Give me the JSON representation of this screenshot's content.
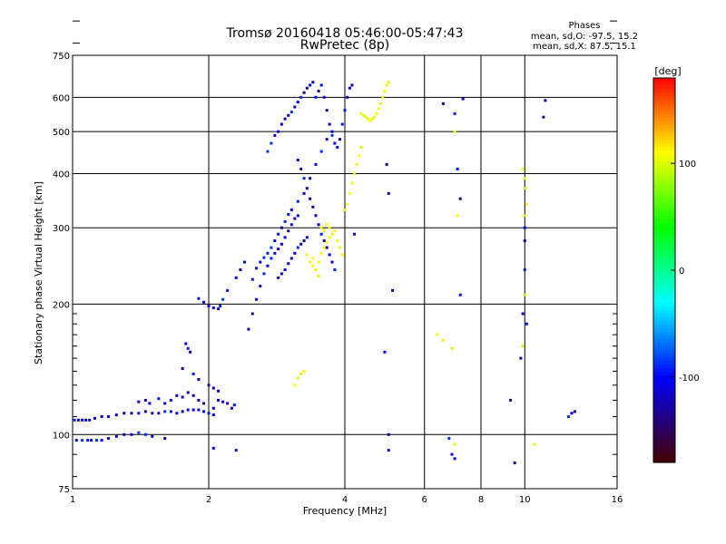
{
  "header": {
    "title_line1": "Tromsø 20160418 05:46:00-05:47:43",
    "title_line2": "RwPretec (8p)"
  },
  "phases_box": {
    "title": "Phases",
    "line_o": "mean, sd,O: -97.5, 15.2",
    "line_x": "mean, sd,X:  87.5, 15.1"
  },
  "colorbar": {
    "label": "[deg]",
    "range": [
      -180,
      180
    ],
    "ticks": [
      100,
      0,
      -100
    ],
    "tick_labels": [
      "100",
      "0",
      "-100"
    ]
  },
  "chart_data": {
    "type": "scatter",
    "title": "Tromsø 20160418 05:46:00-05:47:43",
    "subtitle": "RwPretec (8p)",
    "xlabel": "Frequency [MHz]",
    "ylabel": "Stationary phase Virtual Height [km]",
    "x_scale": "log",
    "y_scale": "log",
    "xlim": [
      1,
      16
    ],
    "ylim": [
      75,
      750
    ],
    "x_ticks": [
      1,
      2,
      4,
      6,
      8,
      10,
      16
    ],
    "x_tick_labels": [
      "1",
      "2",
      "4",
      "6",
      "8",
      "10",
      "16"
    ],
    "x_grid": [
      2,
      4,
      6,
      8,
      10
    ],
    "y_ticks": [
      75,
      100,
      200,
      300,
      400,
      500,
      600,
      750
    ],
    "y_tick_labels": [
      "75",
      "100",
      "200",
      "300",
      "400",
      "500",
      "600",
      "750"
    ],
    "y_grid": [
      100,
      200,
      300,
      400,
      500,
      600
    ],
    "grid": true,
    "series": [
      {
        "points": [
          [
            1.01,
            108
          ],
          [
            1.03,
            108
          ],
          [
            1.05,
            108
          ],
          [
            1.07,
            108
          ],
          [
            1.09,
            108
          ],
          [
            1.12,
            109
          ],
          [
            1.16,
            110
          ],
          [
            1.2,
            110
          ],
          [
            1.25,
            111
          ],
          [
            1.3,
            112
          ],
          [
            1.35,
            112
          ],
          [
            1.4,
            112
          ],
          [
            1.45,
            113
          ],
          [
            1.5,
            112
          ],
          [
            1.55,
            112
          ],
          [
            1.6,
            113
          ],
          [
            1.65,
            113
          ],
          [
            1.7,
            112
          ],
          [
            1.75,
            113
          ],
          [
            1.8,
            114
          ],
          [
            1.85,
            114
          ],
          [
            1.9,
            114
          ],
          [
            1.95,
            113
          ],
          [
            2.0,
            112
          ],
          [
            2.05,
            111
          ],
          [
            1.02,
            97
          ],
          [
            1.05,
            97
          ],
          [
            1.08,
            97
          ],
          [
            1.1,
            97
          ],
          [
            1.13,
            97
          ],
          [
            1.16,
            97
          ],
          [
            1.2,
            98
          ],
          [
            1.25,
            99
          ],
          [
            1.3,
            100
          ],
          [
            1.35,
            100
          ],
          [
            1.4,
            101
          ],
          [
            1.45,
            100
          ],
          [
            1.5,
            99
          ],
          [
            1.6,
            98
          ],
          [
            1.4,
            119
          ],
          [
            1.45,
            120
          ],
          [
            1.48,
            118
          ],
          [
            1.55,
            121
          ],
          [
            1.6,
            118
          ],
          [
            1.65,
            120
          ],
          [
            1.7,
            123
          ],
          [
            1.75,
            122
          ],
          [
            1.8,
            125
          ],
          [
            1.85,
            123
          ],
          [
            1.9,
            120
          ],
          [
            1.95,
            118
          ],
          [
            2.05,
            115
          ],
          [
            2.1,
            120
          ],
          [
            2.15,
            119
          ],
          [
            2.2,
            118
          ],
          [
            2.25,
            115
          ],
          [
            2.28,
            117
          ],
          [
            1.78,
            162
          ],
          [
            1.8,
            158
          ],
          [
            1.82,
            155
          ],
          [
            1.75,
            142
          ],
          [
            1.85,
            138
          ],
          [
            1.9,
            134
          ],
          [
            2.0,
            130
          ],
          [
            2.05,
            128
          ],
          [
            2.1,
            126
          ],
          [
            1.9,
            206
          ],
          [
            1.95,
            202
          ],
          [
            2.0,
            198
          ],
          [
            2.05,
            196
          ],
          [
            2.1,
            195
          ],
          [
            2.12,
            198
          ],
          [
            2.15,
            205
          ],
          [
            2.2,
            215
          ],
          [
            2.3,
            230
          ],
          [
            2.35,
            240
          ],
          [
            2.4,
            250
          ],
          [
            2.45,
            175
          ],
          [
            2.5,
            190
          ],
          [
            2.55,
            205
          ],
          [
            2.6,
            220
          ],
          [
            2.65,
            235
          ],
          [
            2.7,
            245
          ],
          [
            2.75,
            255
          ],
          [
            2.8,
            262
          ],
          [
            2.85,
            268
          ],
          [
            2.9,
            275
          ],
          [
            2.95,
            285
          ],
          [
            3.0,
            295
          ],
          [
            3.05,
            305
          ],
          [
            3.1,
            315
          ],
          [
            3.15,
            320
          ],
          [
            2.5,
            228
          ],
          [
            2.55,
            242
          ],
          [
            2.6,
            250
          ],
          [
            2.65,
            256
          ],
          [
            2.7,
            262
          ],
          [
            2.75,
            270
          ],
          [
            2.8,
            280
          ],
          [
            2.85,
            290
          ],
          [
            2.9,
            300
          ],
          [
            2.95,
            310
          ],
          [
            3.0,
            322
          ],
          [
            3.05,
            330
          ],
          [
            3.15,
            345
          ],
          [
            3.25,
            360
          ],
          [
            3.35,
            390
          ],
          [
            3.45,
            420
          ],
          [
            3.55,
            450
          ],
          [
            3.65,
            480
          ],
          [
            3.75,
            500
          ],
          [
            2.7,
            450
          ],
          [
            2.75,
            470
          ],
          [
            2.8,
            490
          ],
          [
            2.85,
            500
          ],
          [
            2.9,
            520
          ],
          [
            2.95,
            535
          ],
          [
            3.0,
            545
          ],
          [
            3.05,
            555
          ],
          [
            3.1,
            570
          ],
          [
            3.15,
            585
          ],
          [
            3.2,
            600
          ],
          [
            3.25,
            615
          ],
          [
            3.3,
            630
          ],
          [
            3.35,
            640
          ],
          [
            3.4,
            650
          ],
          [
            3.45,
            600
          ],
          [
            3.5,
            620
          ],
          [
            3.55,
            640
          ],
          [
            3.6,
            600
          ],
          [
            3.65,
            560
          ],
          [
            3.7,
            520
          ],
          [
            3.75,
            490
          ],
          [
            3.8,
            470
          ],
          [
            3.85,
            460
          ],
          [
            3.9,
            480
          ],
          [
            3.95,
            520
          ],
          [
            4.0,
            560
          ],
          [
            4.05,
            600
          ],
          [
            4.1,
            630
          ],
          [
            4.15,
            640
          ],
          [
            3.15,
            430
          ],
          [
            3.2,
            410
          ],
          [
            3.25,
            390
          ],
          [
            3.3,
            370
          ],
          [
            3.35,
            350
          ],
          [
            3.4,
            335
          ],
          [
            3.45,
            320
          ],
          [
            3.5,
            305
          ],
          [
            3.55,
            290
          ],
          [
            3.6,
            280
          ],
          [
            3.65,
            270
          ],
          [
            3.7,
            260
          ],
          [
            3.75,
            250
          ],
          [
            3.8,
            240
          ],
          [
            2.85,
            230
          ],
          [
            2.9,
            235
          ],
          [
            2.95,
            240
          ],
          [
            3.0,
            248
          ],
          [
            3.05,
            255
          ],
          [
            3.1,
            262
          ],
          [
            3.15,
            270
          ],
          [
            3.2,
            275
          ],
          [
            3.25,
            280
          ],
          [
            3.3,
            285
          ],
          [
            2.3,
            92
          ],
          [
            2.05,
            93
          ],
          [
            4.2,
            290
          ],
          [
            4.9,
            155
          ],
          [
            4.95,
            420
          ],
          [
            5.0,
            360
          ],
          [
            5.1,
            215
          ],
          [
            5.0,
            100
          ],
          [
            5.0,
            92
          ],
          [
            7.3,
            595
          ],
          [
            7.0,
            550
          ],
          [
            7.1,
            410
          ],
          [
            7.2,
            350
          ],
          [
            6.6,
            580
          ],
          [
            6.8,
            98
          ],
          [
            6.9,
            90
          ],
          [
            7.0,
            88
          ],
          [
            7.2,
            210
          ],
          [
            9.5,
            86
          ],
          [
            9.3,
            120
          ],
          [
            9.8,
            150
          ],
          [
            10.0,
            280
          ],
          [
            10.0,
            300
          ],
          [
            10.0,
            240
          ],
          [
            9.9,
            190
          ],
          [
            10.1,
            180
          ],
          [
            11.1,
            590
          ],
          [
            11.0,
            540
          ],
          [
            12.5,
            110
          ],
          [
            12.7,
            112
          ],
          [
            12.9,
            113
          ]
        ]
      },
      {
        "points": [
          [
            3.3,
            260
          ],
          [
            3.35,
            250
          ],
          [
            3.4,
            245
          ],
          [
            3.45,
            240
          ],
          [
            3.5,
            250
          ],
          [
            3.55,
            262
          ],
          [
            3.6,
            270
          ],
          [
            3.65,
            278
          ],
          [
            3.7,
            285
          ],
          [
            3.75,
            290
          ],
          [
            3.8,
            295
          ],
          [
            3.85,
            280
          ],
          [
            3.9,
            270
          ],
          [
            3.95,
            260
          ],
          [
            3.55,
            300
          ],
          [
            3.6,
            295
          ],
          [
            3.65,
            305
          ],
          [
            3.7,
            300
          ],
          [
            3.4,
            255
          ],
          [
            3.5,
            232
          ],
          [
            4.0,
            330
          ],
          [
            4.05,
            340
          ],
          [
            4.1,
            360
          ],
          [
            4.15,
            380
          ],
          [
            4.2,
            400
          ],
          [
            4.25,
            420
          ],
          [
            4.3,
            440
          ],
          [
            4.35,
            460
          ],
          [
            4.35,
            550
          ],
          [
            4.4,
            545
          ],
          [
            4.45,
            540
          ],
          [
            4.5,
            535
          ],
          [
            4.55,
            530
          ],
          [
            4.6,
            535
          ],
          [
            4.65,
            540
          ],
          [
            4.7,
            550
          ],
          [
            4.75,
            565
          ],
          [
            4.8,
            580
          ],
          [
            4.85,
            600
          ],
          [
            4.9,
            620
          ],
          [
            4.95,
            640
          ],
          [
            5.0,
            650
          ],
          [
            3.1,
            130
          ],
          [
            3.15,
            135
          ],
          [
            3.2,
            138
          ],
          [
            3.25,
            140
          ],
          [
            6.4,
            170
          ],
          [
            6.6,
            165
          ],
          [
            6.9,
            158
          ],
          [
            7.0,
            95
          ],
          [
            7.0,
            500
          ],
          [
            7.1,
            320
          ],
          [
            9.9,
            410
          ],
          [
            10.0,
            390
          ],
          [
            10.05,
            370
          ],
          [
            10.1,
            340
          ],
          [
            9.95,
            320
          ],
          [
            10.0,
            210
          ],
          [
            9.9,
            160
          ],
          [
            10.5,
            95
          ]
        ]
      }
    ],
    "colorbar": {
      "label": "[deg]",
      "range": [
        -180,
        180
      ],
      "ticks": [
        100,
        0,
        -100
      ]
    }
  }
}
